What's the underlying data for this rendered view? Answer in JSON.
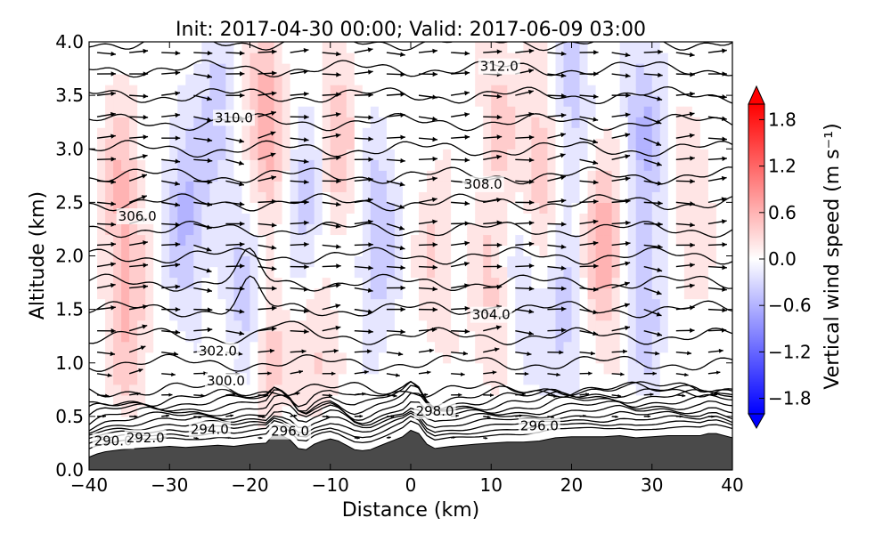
{
  "chart_data": {
    "type": "contourf",
    "title": "Init: 2017-04-30 00:00; Valid: 2017-06-09 03:00",
    "xlabel": "Distance (km)",
    "ylabel": "Altitude (km)",
    "xlim": [
      -40,
      40
    ],
    "ylim": [
      0.0,
      4.0
    ],
    "xticks": [
      "−40",
      "−30",
      "−20",
      "−10",
      "0",
      "10",
      "20",
      "30",
      "40"
    ],
    "xtick_values": [
      -40,
      -30,
      -20,
      -10,
      0,
      10,
      20,
      30,
      40
    ],
    "yticks": [
      "0.0",
      "0.5",
      "1.0",
      "1.5",
      "2.0",
      "2.5",
      "3.0",
      "3.5",
      "4.0"
    ],
    "ytick_values": [
      0.0,
      0.5,
      1.0,
      1.5,
      2.0,
      2.5,
      3.0,
      3.5,
      4.0
    ],
    "colorbar": {
      "label": "Vertical wind speed (m s⁻¹)",
      "range": [
        -2.0,
        2.0
      ],
      "levels": 20,
      "ticks": [
        "1.8",
        "1.2",
        "0.6",
        "0.0",
        "−0.6",
        "−1.2",
        "−1.8"
      ],
      "tick_values": [
        1.8,
        1.2,
        0.6,
        0.0,
        -0.6,
        -1.2,
        -1.8
      ],
      "extend": "both",
      "colormap": "bwr"
    },
    "vertical_wind_cells": [
      {
        "x": -36,
        "z": 2.6,
        "w": 0.5
      },
      {
        "x": -35,
        "z": 1.3,
        "w": 0.45
      },
      {
        "x": -28,
        "z": 2.4,
        "w": -0.55
      },
      {
        "x": -24,
        "z": 3.3,
        "w": -0.4
      },
      {
        "x": -20,
        "z": 1.6,
        "w": -0.55
      },
      {
        "x": -18,
        "z": 3.2,
        "w": 0.7
      },
      {
        "x": -18,
        "z": 1.0,
        "w": 0.55
      },
      {
        "x": -13,
        "z": 2.4,
        "w": -0.45
      },
      {
        "x": -12,
        "z": 1.1,
        "w": 0.4
      },
      {
        "x": -9,
        "z": 3.1,
        "w": 0.45
      },
      {
        "x": -4,
        "z": 2.2,
        "w": -0.5
      },
      {
        "x": 3,
        "z": 2.0,
        "w": 0.3
      },
      {
        "x": 10,
        "z": 1.6,
        "w": 0.35
      },
      {
        "x": 11,
        "z": 3.3,
        "w": 0.35
      },
      {
        "x": 14,
        "z": 1.8,
        "w": -0.3
      },
      {
        "x": 16,
        "z": 2.8,
        "w": 0.5
      },
      {
        "x": 19,
        "z": 1.4,
        "w": -0.4
      },
      {
        "x": 20,
        "z": 3.5,
        "w": -0.4
      },
      {
        "x": 24,
        "z": 2.1,
        "w": 0.65
      },
      {
        "x": 29,
        "z": 1.6,
        "w": -0.45
      },
      {
        "x": 29,
        "z": 3.2,
        "w": -0.5
      },
      {
        "x": 35,
        "z": 2.5,
        "w": 0.3
      }
    ],
    "theta_contours": [
      {
        "label": "290.0",
        "label_x": -37,
        "label_z": 0.27
      },
      {
        "label": "292.0",
        "label_x": -33,
        "label_z": 0.3
      },
      {
        "label": "294.0",
        "label_x": -25,
        "label_z": 0.38
      },
      {
        "label": "296.0",
        "label_x": -15,
        "label_z": 0.36
      },
      {
        "label": "296.0",
        "label_x": 16,
        "label_z": 0.41
      },
      {
        "label": "298.0",
        "label_x": 3,
        "label_z": 0.55
      },
      {
        "label": "300.0",
        "label_x": -23,
        "label_z": 0.83
      },
      {
        "label": "302.0",
        "label_x": -24,
        "label_z": 1.11
      },
      {
        "label": "304.0",
        "label_x": 10,
        "label_z": 1.45
      },
      {
        "label": "306.0",
        "label_x": -34,
        "label_z": 2.37
      },
      {
        "label": "308.0",
        "label_x": 9,
        "label_z": 2.67
      },
      {
        "label": "310.0",
        "label_x": -22,
        "label_z": 3.29
      },
      {
        "label": "312.0",
        "label_x": 11,
        "label_z": 3.77
      }
    ],
    "terrain": {
      "x": [
        -40,
        -39,
        -38,
        -36,
        -34,
        -32,
        -30,
        -28,
        -26,
        -24,
        -22,
        -20,
        -18,
        -17,
        -16,
        -15,
        -14,
        -13,
        -12,
        -11,
        -10,
        -9,
        -8,
        -7,
        -6,
        -5,
        -4,
        -3,
        -2,
        -1,
        0,
        1,
        2,
        3,
        5,
        8,
        10,
        12,
        14,
        16,
        18,
        20,
        22,
        24,
        26,
        28,
        30,
        32,
        34,
        36,
        37,
        38,
        40
      ],
      "z": [
        0.12,
        0.15,
        0.17,
        0.19,
        0.2,
        0.21,
        0.22,
        0.21,
        0.22,
        0.23,
        0.22,
        0.24,
        0.25,
        0.33,
        0.32,
        0.28,
        0.2,
        0.19,
        0.24,
        0.27,
        0.29,
        0.27,
        0.23,
        0.19,
        0.18,
        0.19,
        0.22,
        0.25,
        0.28,
        0.31,
        0.37,
        0.34,
        0.24,
        0.2,
        0.22,
        0.24,
        0.25,
        0.26,
        0.26,
        0.27,
        0.3,
        0.31,
        0.31,
        0.31,
        0.32,
        0.3,
        0.31,
        0.32,
        0.32,
        0.32,
        0.34,
        0.34,
        0.3
      ]
    }
  }
}
